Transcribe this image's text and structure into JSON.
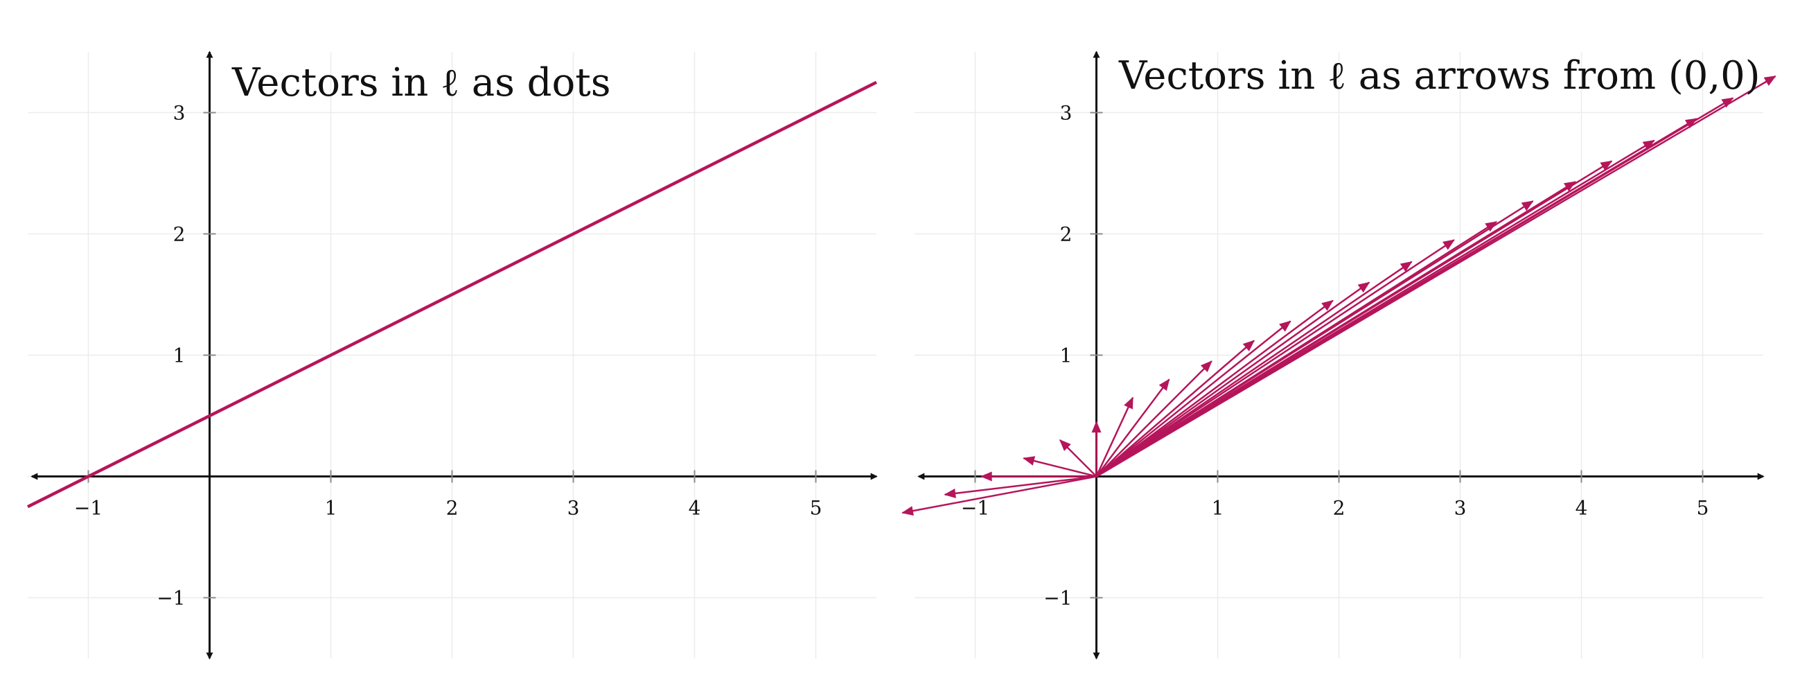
{
  "colors": {
    "line": "#B5155B",
    "axis": "#111111",
    "grid": "#ECECEC"
  },
  "chart_data": [
    {
      "type": "line",
      "title": "Vectors in ℓ as dots",
      "xlim": [
        -1.5,
        5.5
      ],
      "ylim": [
        -1.5,
        3.5
      ],
      "xticks": [
        -1,
        1,
        2,
        3,
        4,
        5
      ],
      "xtick_labels": [
        "−1",
        "1",
        "2",
        "3",
        "4",
        "5"
      ],
      "yticks": [
        -1,
        1,
        2,
        3
      ],
      "ytick_labels": [
        "−1",
        "1",
        "2",
        "3"
      ],
      "grid": true,
      "series": [
        {
          "x": [
            -1.5,
            5.5
          ],
          "y": [
            -0.25,
            3.25
          ]
        }
      ]
    },
    {
      "type": "vector",
      "title": "Vectors in ℓ as arrows from (0,0)",
      "xlim": [
        -1.5,
        5.5
      ],
      "ylim": [
        -1.5,
        3.5
      ],
      "xticks": [
        -1,
        1,
        2,
        3,
        4,
        5
      ],
      "xtick_labels": [
        "−1",
        "1",
        "2",
        "3",
        "4",
        "5"
      ],
      "yticks": [
        -1,
        1,
        2,
        3
      ],
      "ytick_labels": [
        "−1",
        "1",
        "2",
        "3"
      ],
      "grid": true,
      "origin": [
        0,
        0
      ],
      "vectors": [
        [
          -1.6,
          -0.3
        ],
        [
          -1.25,
          -0.15
        ],
        [
          -0.95,
          0
        ],
        [
          -0.6,
          0.15
        ],
        [
          -0.3,
          0.3
        ],
        [
          0,
          0.45
        ],
        [
          0.3,
          0.65
        ],
        [
          0.6,
          0.8
        ],
        [
          0.95,
          0.95
        ],
        [
          1.3,
          1.12
        ],
        [
          1.6,
          1.28
        ],
        [
          1.95,
          1.45
        ],
        [
          2.25,
          1.6
        ],
        [
          2.6,
          1.77
        ],
        [
          2.95,
          1.95
        ],
        [
          3.3,
          2.1
        ],
        [
          3.6,
          2.27
        ],
        [
          3.95,
          2.43
        ],
        [
          4.25,
          2.6
        ],
        [
          4.6,
          2.77
        ],
        [
          4.95,
          2.95
        ],
        [
          5.25,
          3.12
        ],
        [
          5.6,
          3.3
        ]
      ]
    }
  ]
}
